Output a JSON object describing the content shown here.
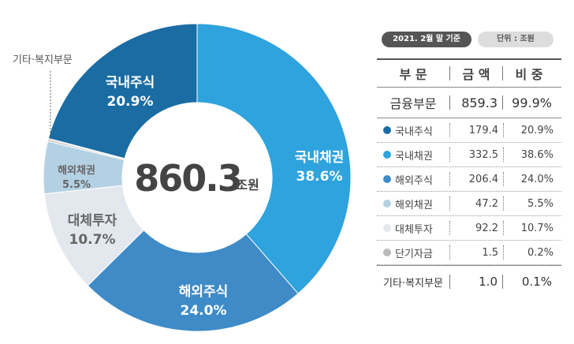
{
  "chart_data": {
    "type": "pie",
    "center_value": "860.3",
    "center_unit": "조원",
    "outside_label": "기타·복지부문",
    "segments": [
      {
        "name": "국내채권",
        "percent_label": "38.6%",
        "value": 38.6,
        "color": "#2ea3dd",
        "text_color": "#ffffff"
      },
      {
        "name": "해외주식",
        "percent_label": "24.0%",
        "value": 24.0,
        "color": "#3e8bc7",
        "text_color": "#ffffff"
      },
      {
        "name": "대체투자",
        "percent_label": "10.7%",
        "value": 10.7,
        "color": "#e3e8ee",
        "text_color": "#666666"
      },
      {
        "name": "해외채권",
        "percent_label": "5.5%",
        "value": 5.5,
        "color": "#b4d1e4",
        "text_color": "#666666"
      },
      {
        "name": "단기자금",
        "percent_label": "",
        "value": 0.2,
        "color": "#bbbbbb",
        "text_color": "#666666"
      },
      {
        "name": "기타·복지부문",
        "percent_label": "",
        "value": 0.1,
        "color": "#444444",
        "text_color": "#666666"
      },
      {
        "name": "국내주식",
        "percent_label": "20.9%",
        "value": 20.9,
        "color": "#1a6ca3",
        "text_color": "#ffffff"
      }
    ]
  },
  "panel": {
    "date_badge": "2021. 2월 말 기준",
    "unit_badge": "단위 : 조원",
    "headers": {
      "sector": "부 문",
      "amount": "금 액",
      "ratio": "비 중"
    },
    "total": {
      "name": "금융부문",
      "amount": "859.3",
      "ratio": "99.9%"
    },
    "rows": [
      {
        "name": "국내주식",
        "amount": "179.4",
        "ratio": "20.9%",
        "color": "#1a6ca3"
      },
      {
        "name": "국내채권",
        "amount": "332.5",
        "ratio": "38.6%",
        "color": "#2ea3dd"
      },
      {
        "name": "해외주식",
        "amount": "206.4",
        "ratio": "24.0%",
        "color": "#3e8bc7"
      },
      {
        "name": "해외채권",
        "amount": "47.2",
        "ratio": "5.5%",
        "color": "#b4d1e4"
      },
      {
        "name": "대체투자",
        "amount": "92.2",
        "ratio": "10.7%",
        "color": "#e3e8ee"
      },
      {
        "name": "단기자금",
        "amount": "1.5",
        "ratio": "0.2%",
        "color": "#bbbbbb"
      }
    ],
    "other": {
      "name": "기타·복지부문",
      "amount": "1.0",
      "ratio": "0.1%"
    }
  }
}
